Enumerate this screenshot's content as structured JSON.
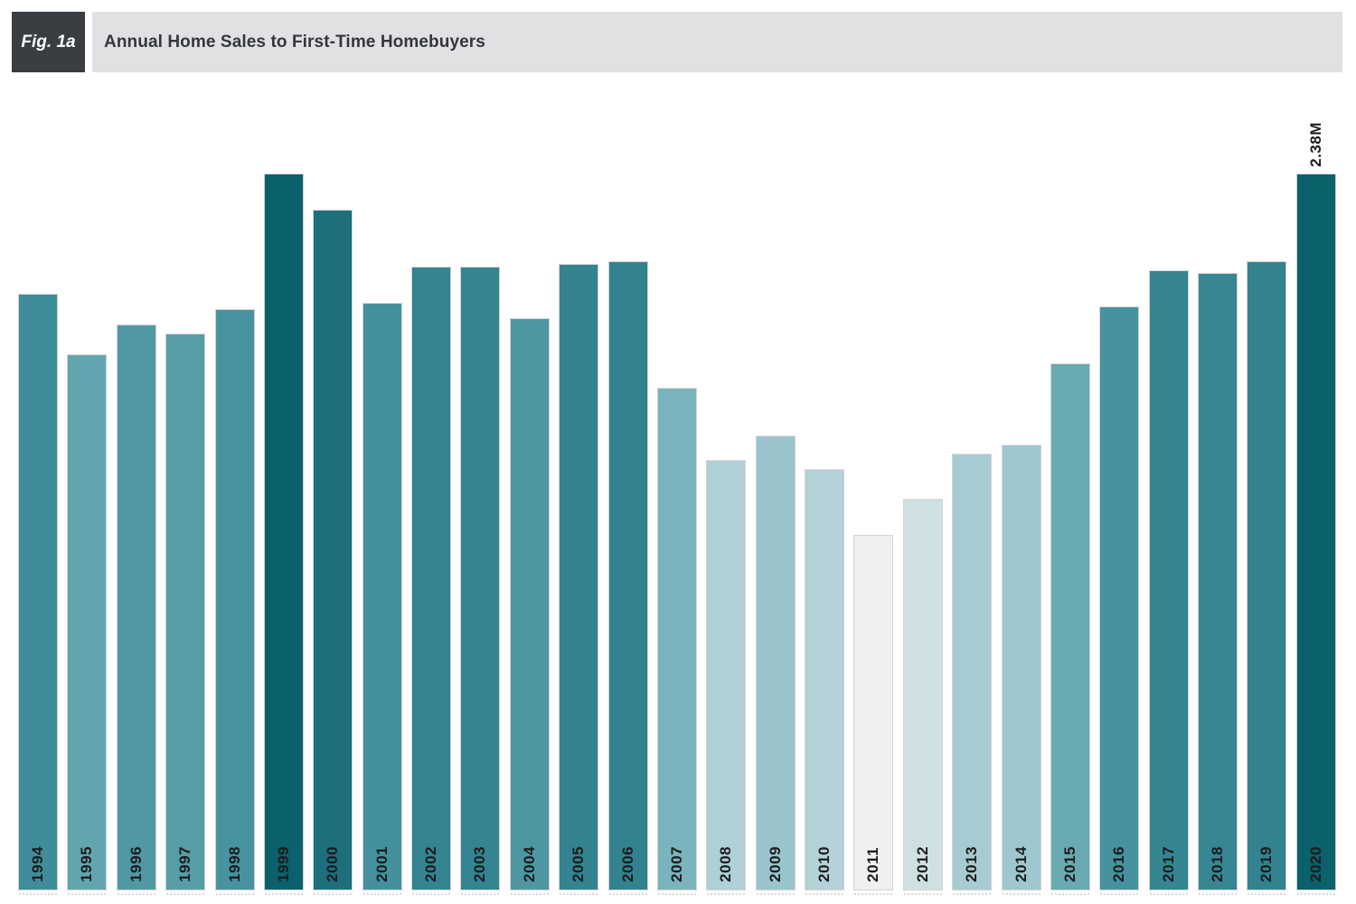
{
  "figure": {
    "tag": "Fig. 1a",
    "title": "Annual Home Sales to First-Time Homebuyers"
  },
  "chart_data": {
    "type": "bar",
    "title": "Annual Home Sales to First-Time Homebuyers",
    "unit": "millions of homes sold",
    "categories": [
      "1994",
      "1995",
      "1996",
      "1997",
      "1998",
      "1999",
      "2000",
      "2001",
      "2002",
      "2003",
      "2004",
      "2005",
      "2006",
      "2007",
      "2008",
      "2009",
      "2010",
      "2011",
      "2012",
      "2013",
      "2014",
      "2015",
      "2016",
      "2017",
      "2018",
      "2019",
      "2020"
    ],
    "values": [
      1.98,
      1.78,
      1.88,
      1.85,
      1.93,
      2.38,
      2.26,
      1.95,
      2.07,
      2.07,
      1.9,
      2.08,
      2.09,
      1.67,
      1.43,
      1.51,
      1.4,
      1.18,
      1.3,
      1.45,
      1.48,
      1.75,
      1.94,
      2.06,
      2.05,
      2.09,
      2.38
    ],
    "bar_colors": [
      "#3f8d9b",
      "#62a5ae",
      "#5099a4",
      "#569da7",
      "#4893a0",
      "#0a616c",
      "#1d6f7c",
      "#44919e",
      "#348492",
      "#348492",
      "#4d97a3",
      "#338391",
      "#328290",
      "#7ab4bd",
      "#aed0d6",
      "#99c4cc",
      "#b4d2d8",
      "#f0f0f0",
      "#cfe0e3",
      "#a7cbd2",
      "#9fc7cf",
      "#69a9b2",
      "#46929f",
      "#358593",
      "#378694",
      "#328290",
      "#0a616c"
    ],
    "annotations": [
      {
        "category": "2020",
        "text": "2.38M"
      }
    ],
    "xlabel": "",
    "ylabel": "",
    "ylim": [
      0,
      2.38
    ],
    "grid": false,
    "legend": "none",
    "color_scale": "sequential light-gray (low) to dark teal (high), mapped to value"
  },
  "colors": {
    "tag_bg": "#3a3e43",
    "tag_text": "#ffffff",
    "title_bg": "#e1e1e3",
    "title_text": "#33373c",
    "label_text": "#1c1c1c",
    "bar_stroke": "#d2d2d2",
    "tick_color": "#d9d9d9",
    "background": "#ffffff"
  }
}
